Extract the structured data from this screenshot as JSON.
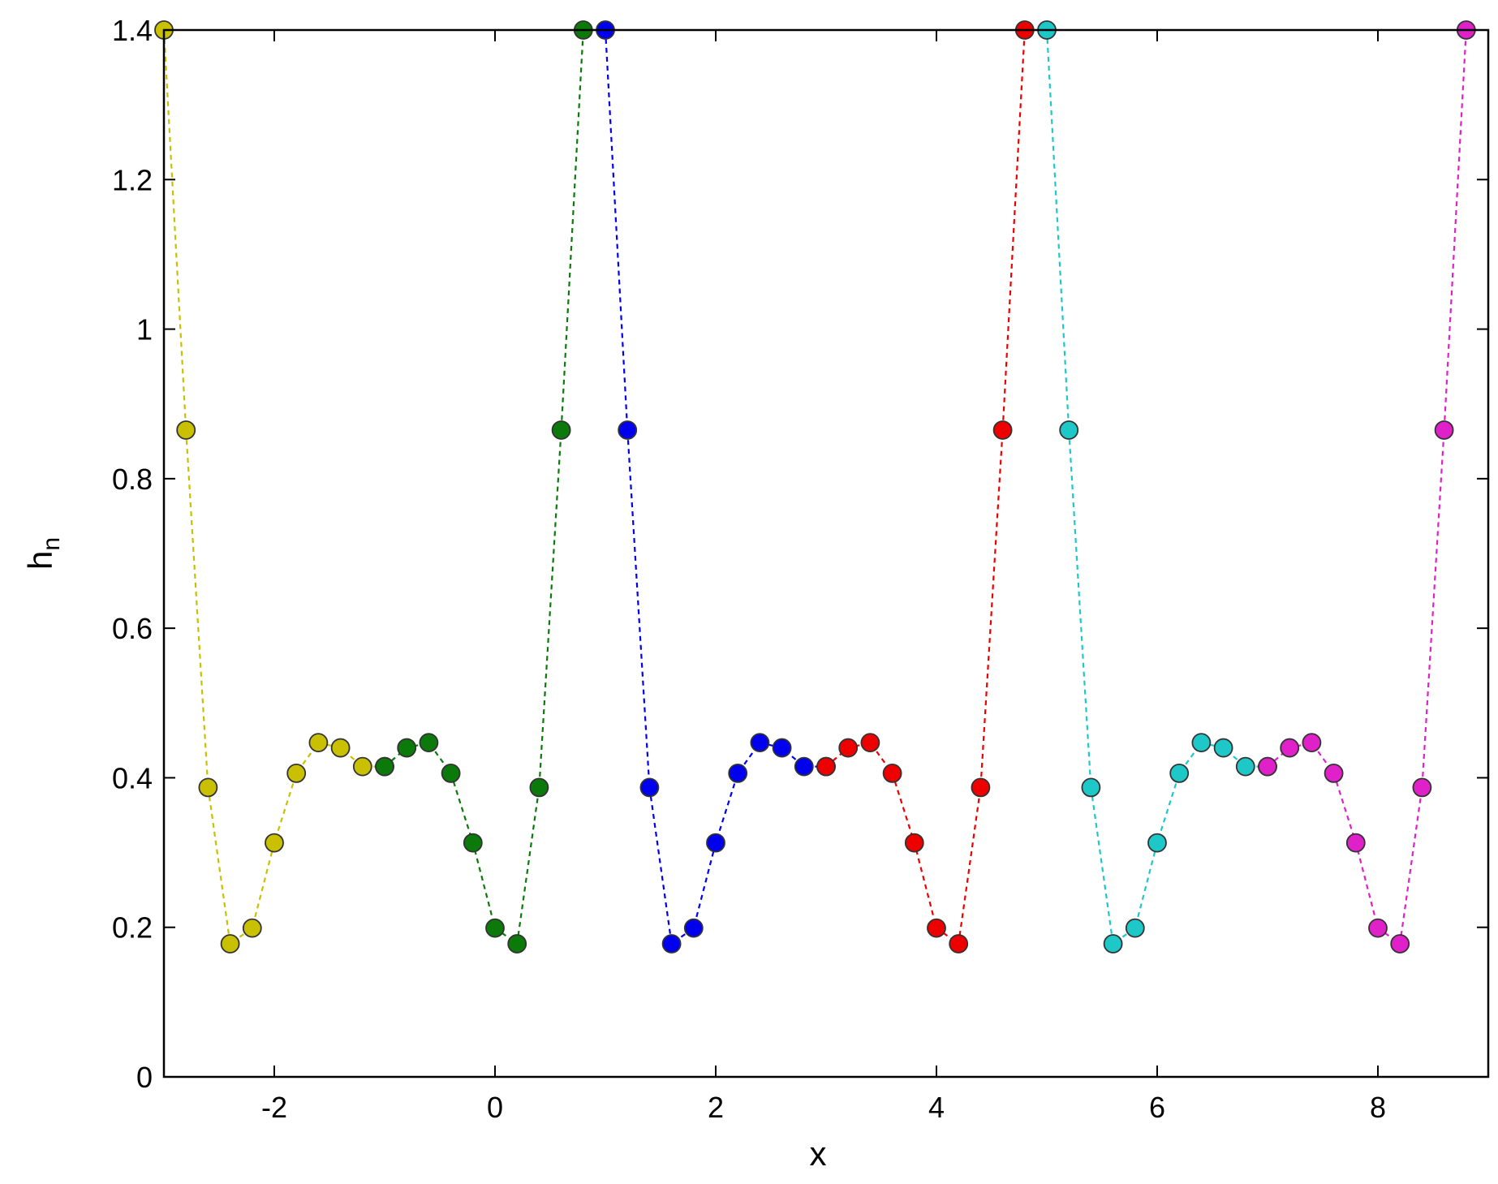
{
  "chart_data": {
    "type": "line",
    "title": "",
    "xlabel": "x",
    "ylabel_main": "h",
    "ylabel_sub": "n",
    "xlim": [
      -3,
      9
    ],
    "ylim": [
      0,
      1.4
    ],
    "x_ticks": [
      -2,
      0,
      2,
      4,
      6,
      8
    ],
    "x_tick_labels": [
      "-2",
      "0",
      "2",
      "4",
      "6",
      "8"
    ],
    "y_ticks": [
      0,
      0.2,
      0.4,
      0.6,
      0.8,
      1.0,
      1.2,
      1.4
    ],
    "y_tick_labels": [
      "0",
      "0.2",
      "0.4",
      "0.6",
      "0.8",
      "1",
      "1.2",
      "1.4"
    ],
    "grid": false,
    "line_style": "dashed",
    "marker": "circle",
    "series": [
      {
        "color": "#c8c000",
        "x": [
          -3.0,
          -2.8,
          -2.6,
          -2.4,
          -2.2,
          -2.0,
          -1.8,
          -1.6,
          -1.4,
          -1.2,
          -1.0
        ],
        "y": [
          1.4,
          0.865,
          0.387,
          0.178,
          0.199,
          0.313,
          0.406,
          0.447,
          0.44,
          0.415,
          0.415
        ]
      },
      {
        "color": "#0b7a0b",
        "x": [
          -1.0,
          -0.8,
          -0.6,
          -0.4,
          -0.2,
          0.0,
          0.2,
          0.4,
          0.6,
          0.8
        ],
        "y": [
          0.415,
          0.44,
          0.447,
          0.406,
          0.313,
          0.199,
          0.178,
          0.387,
          0.865,
          1.4
        ]
      },
      {
        "color": "#0000ee",
        "x": [
          1.0,
          1.2,
          1.4,
          1.6,
          1.8,
          2.0,
          2.2,
          2.4,
          2.6,
          2.8,
          3.0
        ],
        "y": [
          1.4,
          0.865,
          0.387,
          0.178,
          0.199,
          0.313,
          0.406,
          0.447,
          0.44,
          0.415,
          0.415
        ]
      },
      {
        "color": "#ee0000",
        "x": [
          3.0,
          3.2,
          3.4,
          3.6,
          3.8,
          4.0,
          4.2,
          4.4,
          4.6,
          4.8
        ],
        "y": [
          0.415,
          0.44,
          0.447,
          0.406,
          0.313,
          0.199,
          0.178,
          0.387,
          0.865,
          1.4
        ]
      },
      {
        "color": "#1ec8c8",
        "x": [
          5.0,
          5.2,
          5.4,
          5.6,
          5.8,
          6.0,
          6.2,
          6.4,
          6.6,
          6.8,
          7.0
        ],
        "y": [
          1.4,
          0.865,
          0.387,
          0.178,
          0.199,
          0.313,
          0.406,
          0.447,
          0.44,
          0.415,
          0.415
        ]
      },
      {
        "color": "#e020c8",
        "x": [
          7.0,
          7.2,
          7.4,
          7.6,
          7.8,
          8.0,
          8.2,
          8.4,
          8.6,
          8.8
        ],
        "y": [
          0.415,
          0.44,
          0.447,
          0.406,
          0.313,
          0.199,
          0.178,
          0.387,
          0.865,
          1.4
        ]
      }
    ]
  }
}
